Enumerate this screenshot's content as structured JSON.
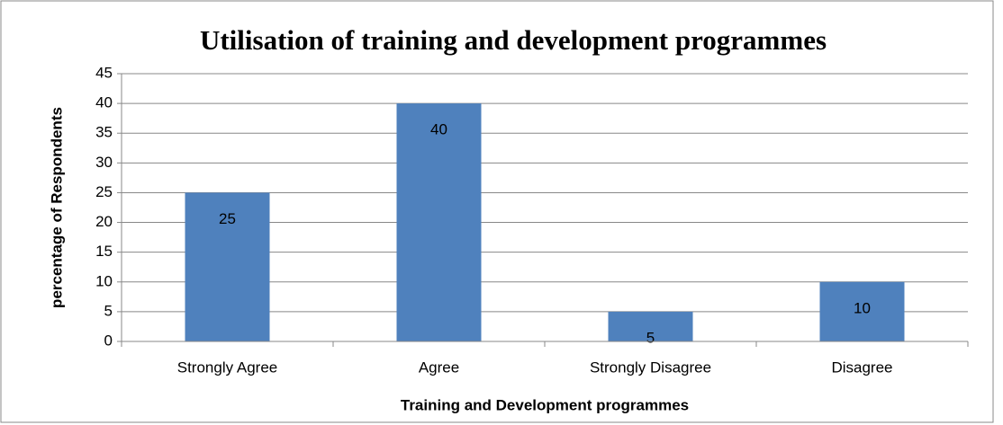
{
  "chart_data": {
    "type": "bar",
    "title": "Utilisation of training and development programmes",
    "x_label": "Training and Development programmes",
    "y_label": "percentage of Respondents",
    "categories": [
      "Strongly Agree",
      "Agree",
      "Strongly Disagree",
      "Disagree"
    ],
    "values": [
      25,
      40,
      5,
      10
    ],
    "color": "#4f81bd",
    "ylim": [
      0,
      45
    ],
    "yticks": [
      0,
      5,
      10,
      15,
      20,
      25,
      30,
      35,
      40,
      45
    ],
    "grid": true
  }
}
